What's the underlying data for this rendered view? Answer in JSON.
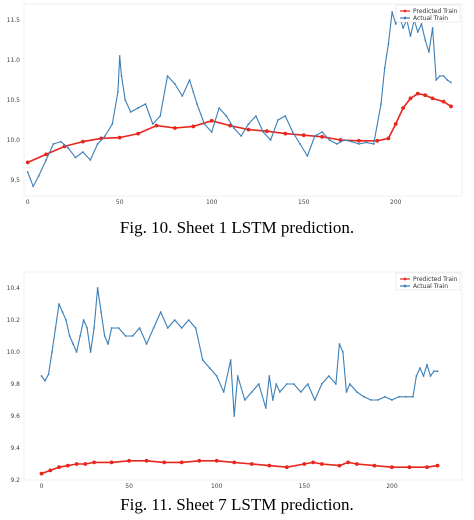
{
  "figures": [
    {
      "caption": "Fig. 10.  Sheet 1 LSTM prediction."
    },
    {
      "caption": "Fig. 11.  Sheet 7 LSTM prediction."
    }
  ],
  "colors": {
    "predicted": "#e8261e",
    "actual": "#3b7fb8",
    "background": "#ffffff"
  },
  "chart_data": [
    {
      "type": "line",
      "title": "",
      "xlabel": "",
      "ylabel": "",
      "xlim": [
        -2,
        236
      ],
      "ylim": [
        9.3,
        11.7
      ],
      "xticks": [
        0,
        50,
        100,
        150,
        200
      ],
      "xtick_labels": [
        "0",
        "50",
        "100",
        "150",
        "200"
      ],
      "yticks": [
        9.5,
        10.0,
        10.5,
        11.0,
        11.5
      ],
      "ytick_labels": [
        "9.5",
        "10.0",
        "10.5",
        "11.0",
        "11.5"
      ],
      "legend": {
        "position": "top-right",
        "entries": [
          "Predicted Train",
          "Actual Train"
        ]
      },
      "grid": false,
      "series": [
        {
          "name": "Predicted Train",
          "marker": "circle",
          "x": [
            0,
            10,
            20,
            30,
            40,
            50,
            60,
            70,
            80,
            90,
            100,
            110,
            120,
            130,
            140,
            150,
            160,
            170,
            180,
            190,
            196,
            200,
            204,
            208,
            212,
            216,
            220,
            226,
            230
          ],
          "y": [
            9.72,
            9.82,
            9.92,
            9.98,
            10.02,
            10.03,
            10.08,
            10.18,
            10.15,
            10.17,
            10.24,
            10.18,
            10.13,
            10.11,
            10.08,
            10.06,
            10.04,
            10.0,
            9.99,
            9.99,
            10.02,
            10.2,
            10.4,
            10.52,
            10.58,
            10.56,
            10.52,
            10.48,
            10.42
          ]
        },
        {
          "name": "Actual Train",
          "marker": "dot",
          "x": [
            0,
            3,
            6,
            10,
            14,
            18,
            22,
            26,
            30,
            34,
            38,
            42,
            46,
            49,
            50,
            51,
            53,
            56,
            60,
            64,
            68,
            72,
            76,
            80,
            84,
            88,
            90,
            92,
            96,
            100,
            104,
            108,
            112,
            116,
            120,
            124,
            128,
            132,
            136,
            140,
            144,
            148,
            152,
            156,
            160,
            164,
            168,
            172,
            176,
            180,
            184,
            188,
            192,
            194,
            196,
            198,
            200,
            202,
            204,
            206,
            208,
            210,
            212,
            214,
            216,
            218,
            220,
            222,
            224,
            226,
            228,
            230
          ],
          "y": [
            9.6,
            9.42,
            9.55,
            9.75,
            9.95,
            9.98,
            9.9,
            9.78,
            9.85,
            9.75,
            9.95,
            10.05,
            10.2,
            10.6,
            11.05,
            10.8,
            10.5,
            10.35,
            10.4,
            10.45,
            10.2,
            10.3,
            10.8,
            10.7,
            10.55,
            10.75,
            10.6,
            10.45,
            10.2,
            10.1,
            10.4,
            10.3,
            10.15,
            10.05,
            10.2,
            10.3,
            10.1,
            10.0,
            10.25,
            10.3,
            10.1,
            9.95,
            9.8,
            10.05,
            10.1,
            10.0,
            9.95,
            10.0,
            9.98,
            9.95,
            9.97,
            9.95,
            10.45,
            10.9,
            11.2,
            11.6,
            11.45,
            11.55,
            11.4,
            11.5,
            11.3,
            11.5,
            11.35,
            11.45,
            11.25,
            11.1,
            11.4,
            10.75,
            10.8,
            10.8,
            10.75,
            10.72
          ]
        }
      ]
    },
    {
      "type": "line",
      "title": "",
      "xlabel": "",
      "ylabel": "",
      "xlim": [
        -10,
        240
      ],
      "ylim": [
        9.2,
        10.5
      ],
      "xticks": [
        0,
        50,
        100,
        150,
        200
      ],
      "xtick_labels": [
        "0",
        "50",
        "100",
        "150",
        "200"
      ],
      "yticks": [
        9.2,
        9.4,
        9.6,
        9.8,
        10.0,
        10.2,
        10.4
      ],
      "ytick_labels": [
        "9.2",
        "9.4",
        "9.6",
        "9.8",
        "10.0",
        "10.2",
        "10.4"
      ],
      "legend": {
        "position": "top-right",
        "entries": [
          "Predicted Train",
          "Actual Train"
        ]
      },
      "grid": false,
      "series": [
        {
          "name": "Predicted Train",
          "marker": "circle",
          "x": [
            0,
            5,
            10,
            15,
            20,
            25,
            30,
            40,
            50,
            60,
            70,
            80,
            90,
            100,
            110,
            120,
            130,
            140,
            150,
            155,
            160,
            170,
            175,
            180,
            190,
            200,
            210,
            220,
            226
          ],
          "y": [
            9.24,
            9.26,
            9.28,
            9.29,
            9.3,
            9.3,
            9.31,
            9.31,
            9.32,
            9.32,
            9.31,
            9.31,
            9.32,
            9.32,
            9.31,
            9.3,
            9.29,
            9.28,
            9.3,
            9.31,
            9.3,
            9.29,
            9.31,
            9.3,
            9.29,
            9.28,
            9.28,
            9.28,
            9.29
          ],
          "y_display": [
            9.24,
            9.26,
            9.28,
            9.29,
            9.3,
            9.3,
            9.31,
            9.31,
            9.32,
            9.32,
            9.31,
            9.31,
            9.32,
            9.32,
            9.31,
            9.3,
            9.29,
            9.28,
            9.3,
            9.31,
            9.3,
            9.29,
            9.31,
            9.3,
            9.29,
            9.28,
            9.28,
            9.28,
            9.29
          ]
        },
        {
          "name": "Actual Train",
          "marker": "dot",
          "x": [
            0,
            2,
            4,
            6,
            8,
            10,
            12,
            14,
            16,
            18,
            20,
            22,
            24,
            26,
            28,
            30,
            32,
            34,
            36,
            38,
            40,
            44,
            48,
            52,
            56,
            60,
            64,
            68,
            72,
            76,
            80,
            84,
            88,
            92,
            96,
            100,
            104,
            108,
            110,
            112,
            116,
            120,
            124,
            128,
            130,
            132,
            134,
            136,
            140,
            144,
            148,
            152,
            156,
            160,
            164,
            168,
            170,
            172,
            174,
            176,
            180,
            184,
            188,
            192,
            196,
            200,
            204,
            208,
            212,
            214,
            216,
            218,
            220,
            222,
            224,
            226
          ],
          "y": [
            9.85,
            9.82,
            9.86,
            10.0,
            10.15,
            10.3,
            10.25,
            10.2,
            10.1,
            10.05,
            10.0,
            10.1,
            10.2,
            10.15,
            10.0,
            10.15,
            10.4,
            10.25,
            10.1,
            10.05,
            10.15,
            10.15,
            10.1,
            10.1,
            10.15,
            10.05,
            10.15,
            10.25,
            10.15,
            10.2,
            10.15,
            10.2,
            10.15,
            9.95,
            9.9,
            9.85,
            9.75,
            9.95,
            9.6,
            9.85,
            9.7,
            9.75,
            9.8,
            9.65,
            9.85,
            9.7,
            9.8,
            9.75,
            9.8,
            9.8,
            9.75,
            9.8,
            9.7,
            9.8,
            9.85,
            9.8,
            10.05,
            10.0,
            9.75,
            9.8,
            9.75,
            9.72,
            9.7,
            9.7,
            9.72,
            9.7,
            9.72,
            9.72,
            9.72,
            9.85,
            9.9,
            9.85,
            9.92,
            9.85,
            9.88,
            9.88
          ]
        }
      ]
    }
  ]
}
